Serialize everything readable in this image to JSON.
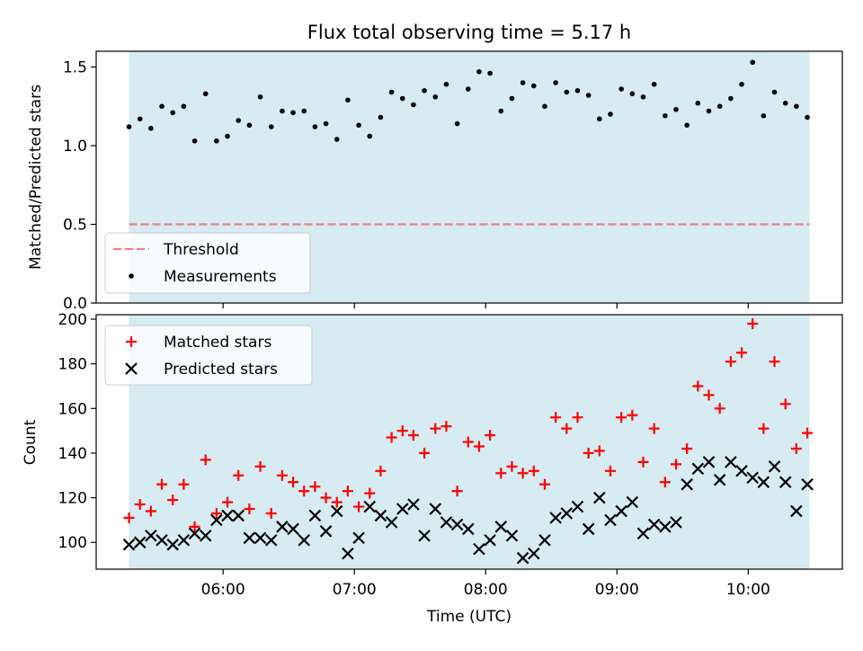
{
  "title": "Flux total observing time = 5.17 h",
  "colors": {
    "shade": "#add8e6",
    "threshold": "#f08080",
    "matched": "#ff0000",
    "predicted": "#000000",
    "measurement": "#000000"
  },
  "chart_data": [
    {
      "type": "scatter",
      "panel": "top",
      "ylabel": "Matched/Predicted stars",
      "ylim": [
        0,
        1.6
      ],
      "yticks": [
        0.0,
        0.5,
        1.0,
        1.5
      ],
      "ytick_labels": [
        "0.0",
        "0.5",
        "1.0",
        "1.5"
      ],
      "xlim": [
        "05:02",
        "10:43"
      ],
      "shaded_span": [
        "05:17",
        "10:28"
      ],
      "threshold": {
        "name": "Threshold",
        "value": 0.5
      },
      "legend_position": "lower-left",
      "series": [
        {
          "name": "Measurements",
          "x": [
            "05:17",
            "05:22",
            "05:27",
            "05:32",
            "05:37",
            "05:42",
            "05:47",
            "05:52",
            "05:57",
            "06:02",
            "06:07",
            "06:12",
            "06:17",
            "06:22",
            "06:27",
            "06:32",
            "06:37",
            "06:42",
            "06:47",
            "06:52",
            "06:57",
            "07:02",
            "07:07",
            "07:12",
            "07:17",
            "07:22",
            "07:27",
            "07:32",
            "07:37",
            "07:42",
            "07:47",
            "07:52",
            "07:57",
            "08:02",
            "08:07",
            "08:12",
            "08:17",
            "08:22",
            "08:27",
            "08:32",
            "08:37",
            "08:42",
            "08:47",
            "08:52",
            "08:57",
            "09:02",
            "09:07",
            "09:12",
            "09:17",
            "09:22",
            "09:27",
            "09:32",
            "09:37",
            "09:42",
            "09:47",
            "09:52",
            "09:57",
            "10:02",
            "10:07",
            "10:12",
            "10:17",
            "10:22",
            "10:27"
          ],
          "values": [
            1.12,
            1.17,
            1.11,
            1.25,
            1.21,
            1.25,
            1.03,
            1.33,
            1.03,
            1.06,
            1.16,
            1.13,
            1.31,
            1.12,
            1.22,
            1.21,
            1.22,
            1.12,
            1.14,
            1.04,
            1.29,
            1.13,
            1.06,
            1.18,
            1.34,
            1.3,
            1.26,
            1.35,
            1.31,
            1.39,
            1.14,
            1.36,
            1.47,
            1.46,
            1.22,
            1.3,
            1.4,
            1.38,
            1.25,
            1.4,
            1.34,
            1.35,
            1.32,
            1.17,
            1.2,
            1.36,
            1.33,
            1.31,
            1.39,
            1.19,
            1.23,
            1.13,
            1.27,
            1.22,
            1.25,
            1.3,
            1.39,
            1.53,
            1.19,
            1.34,
            1.27,
            1.25,
            1.18
          ]
        }
      ]
    },
    {
      "type": "scatter",
      "panel": "bottom",
      "xlabel": "Time (UTC)",
      "ylabel": "Count",
      "ylim": [
        88,
        202
      ],
      "yticks": [
        100,
        120,
        140,
        160,
        180,
        200
      ],
      "ytick_labels": [
        "100",
        "120",
        "140",
        "160",
        "180",
        "200"
      ],
      "xlim": [
        "05:02",
        "10:43"
      ],
      "xticks": [
        "06:00",
        "07:00",
        "08:00",
        "09:00",
        "10:00"
      ],
      "xtick_labels": [
        "06:00",
        "07:00",
        "08:00",
        "09:00",
        "10:00"
      ],
      "shaded_span": [
        "05:17",
        "10:28"
      ],
      "legend_position": "top-left",
      "x": [
        "05:17",
        "05:22",
        "05:27",
        "05:32",
        "05:37",
        "05:42",
        "05:47",
        "05:52",
        "05:57",
        "06:02",
        "06:07",
        "06:12",
        "06:17",
        "06:22",
        "06:27",
        "06:32",
        "06:37",
        "06:42",
        "06:47",
        "06:52",
        "06:57",
        "07:02",
        "07:07",
        "07:12",
        "07:17",
        "07:22",
        "07:27",
        "07:32",
        "07:37",
        "07:42",
        "07:47",
        "07:52",
        "07:57",
        "08:02",
        "08:07",
        "08:12",
        "08:17",
        "08:22",
        "08:27",
        "08:32",
        "08:37",
        "08:42",
        "08:47",
        "08:52",
        "08:57",
        "09:02",
        "09:07",
        "09:12",
        "09:17",
        "09:22",
        "09:27",
        "09:32",
        "09:37",
        "09:42",
        "09:47",
        "09:52",
        "09:57",
        "10:02",
        "10:07",
        "10:12",
        "10:17",
        "10:22",
        "10:27"
      ],
      "series": [
        {
          "name": "Matched stars",
          "marker": "plus",
          "values": [
            111,
            117,
            114,
            126,
            119,
            126,
            107,
            137,
            113,
            118,
            130,
            115,
            134,
            113,
            130,
            127,
            123,
            125,
            120,
            118,
            123,
            116,
            122,
            132,
            147,
            150,
            148,
            140,
            151,
            152,
            123,
            145,
            143,
            148,
            131,
            134,
            131,
            132,
            126,
            156,
            151,
            156,
            140,
            141,
            132,
            156,
            157,
            136,
            151,
            127,
            135,
            142,
            170,
            166,
            160,
            181,
            185,
            198,
            151,
            181,
            162,
            142,
            149
          ]
        },
        {
          "name": "Predicted stars",
          "marker": "x",
          "values": [
            99,
            100,
            103,
            101,
            99,
            101,
            104,
            103,
            110,
            112,
            112,
            102,
            102,
            101,
            107,
            106,
            101,
            112,
            105,
            114,
            95,
            102,
            116,
            112,
            109,
            115,
            117,
            103,
            115,
            109,
            108,
            106,
            97,
            101,
            107,
            103,
            93,
            95,
            101,
            111,
            113,
            116,
            106,
            120,
            110,
            114,
            118,
            104,
            108,
            107,
            109,
            126,
            133,
            136,
            128,
            136,
            132,
            129,
            127,
            134,
            127,
            114,
            126
          ]
        }
      ]
    }
  ]
}
